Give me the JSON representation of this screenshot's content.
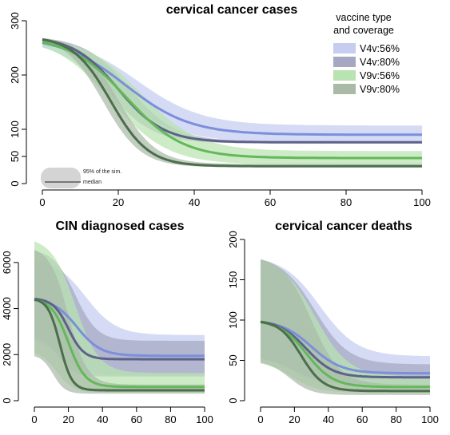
{
  "legend": {
    "title_lines": [
      "vaccine type",
      "and coverage"
    ],
    "entries": [
      {
        "name": "V4v:56%",
        "band_color": "#c5cdf0",
        "line_color": "#7b8fdb"
      },
      {
        "name": "V4v:80%",
        "band_color": "#a6a7c1",
        "line_color": "#5e6288"
      },
      {
        "name": "V9v:56%",
        "band_color": "#b9e3b0",
        "line_color": "#63b859"
      },
      {
        "name": "V9v:80%",
        "band_color": "#a9bba7",
        "line_color": "#4d6e4d"
      }
    ]
  },
  "inset_legend": {
    "band_label": "95% of the sim.",
    "line_label": "median"
  },
  "chart_data": [
    {
      "type": "line",
      "title": "cervical cancer cases",
      "xlim": [
        0,
        100
      ],
      "ylim": [
        0,
        300
      ],
      "xticks": [
        0,
        20,
        40,
        60,
        80,
        100
      ],
      "yticks": [
        0,
        50,
        100,
        200,
        300
      ],
      "series": [
        {
          "name": "V4v:56%",
          "start": 272,
          "end": 90,
          "mid": 22,
          "width": 8.5,
          "band_low_end": 76,
          "band_high_end": 107,
          "band_low_mid": 18,
          "band_high_mid": 25
        },
        {
          "name": "V4v:80%",
          "start": 272,
          "end": 76,
          "mid": 20,
          "width": 6,
          "band_low_end": 74,
          "band_high_end": 78,
          "band_low_mid": 17,
          "band_high_mid": 23
        },
        {
          "name": "V9v:56%",
          "start": 272,
          "end": 47,
          "mid": 22,
          "width": 7.5,
          "band_low_end": 35,
          "band_high_end": 60,
          "band_low_mid": 18,
          "band_high_mid": 26
        },
        {
          "name": "V9v:80%",
          "start": 272,
          "end": 32,
          "mid": 18,
          "width": 5,
          "band_low_end": 30,
          "band_high_end": 36,
          "band_low_mid": 16,
          "band_high_mid": 20
        }
      ]
    },
    {
      "type": "line",
      "title": "CIN diagnosed cases",
      "xlim": [
        0,
        100
      ],
      "ylim": [
        0,
        7000
      ],
      "xticks": [
        0,
        20,
        40,
        60,
        80,
        100
      ],
      "yticks": [
        0,
        2000,
        4000,
        6000
      ],
      "series": [
        {
          "name": "V4v:56%",
          "start": 4450,
          "end": 1950,
          "mid": 25,
          "width": 7,
          "band_low_start": 2700,
          "band_high_start": 6200,
          "band_low_end": 1100,
          "band_high_end": 2850,
          "band_mid_low": 16,
          "band_mid_high": 30
        },
        {
          "name": "V4v:80%",
          "start": 4450,
          "end": 1800,
          "mid": 20,
          "width": 4.5,
          "band_low_start": 2800,
          "band_high_start": 6600,
          "band_low_end": 1050,
          "band_high_end": 2600,
          "band_mid_low": 14,
          "band_mid_high": 24
        },
        {
          "name": "V9v:56%",
          "start": 4450,
          "end": 600,
          "mid": 20,
          "width": 5,
          "band_low_start": 2200,
          "band_high_start": 7100,
          "band_low_end": 350,
          "band_high_end": 1200,
          "band_mid_low": 13,
          "band_mid_high": 24
        },
        {
          "name": "V9v:80%",
          "start": 4450,
          "end": 450,
          "mid": 15,
          "width": 3.5,
          "band_low_start": 2000,
          "band_high_start": 6700,
          "band_low_end": 300,
          "band_high_end": 700,
          "band_mid_low": 11,
          "band_mid_high": 20
        }
      ]
    },
    {
      "type": "line",
      "title": "cervical cancer deaths",
      "xlim": [
        0,
        100
      ],
      "ylim": [
        0,
        200
      ],
      "xticks": [
        0,
        20,
        40,
        60,
        80,
        100
      ],
      "yticks": [
        0,
        50,
        100,
        150,
        200
      ],
      "series": [
        {
          "name": "V4v:56%",
          "start": 100,
          "end": 34,
          "mid": 30,
          "width": 9,
          "band_low_start": 55,
          "band_high_start": 180,
          "band_low_end": 20,
          "band_high_end": 55,
          "band_mid_low": 20,
          "band_mid_high": 35
        },
        {
          "name": "V4v:80%",
          "start": 100,
          "end": 29,
          "mid": 27,
          "width": 8,
          "band_low_start": 55,
          "band_high_start": 180,
          "band_low_end": 20,
          "band_high_end": 45,
          "band_mid_low": 19,
          "band_mid_high": 32
        },
        {
          "name": "V9v:56%",
          "start": 100,
          "end": 17,
          "mid": 27,
          "width": 8,
          "band_low_start": 50,
          "band_high_start": 180,
          "band_low_end": 10,
          "band_high_end": 30,
          "band_mid_low": 18,
          "band_mid_high": 32
        },
        {
          "name": "V9v:80%",
          "start": 100,
          "end": 12,
          "mid": 24,
          "width": 6.5,
          "band_low_start": 50,
          "band_high_start": 180,
          "band_low_end": 7,
          "band_high_end": 20,
          "band_mid_low": 17,
          "band_mid_high": 30
        }
      ]
    }
  ]
}
